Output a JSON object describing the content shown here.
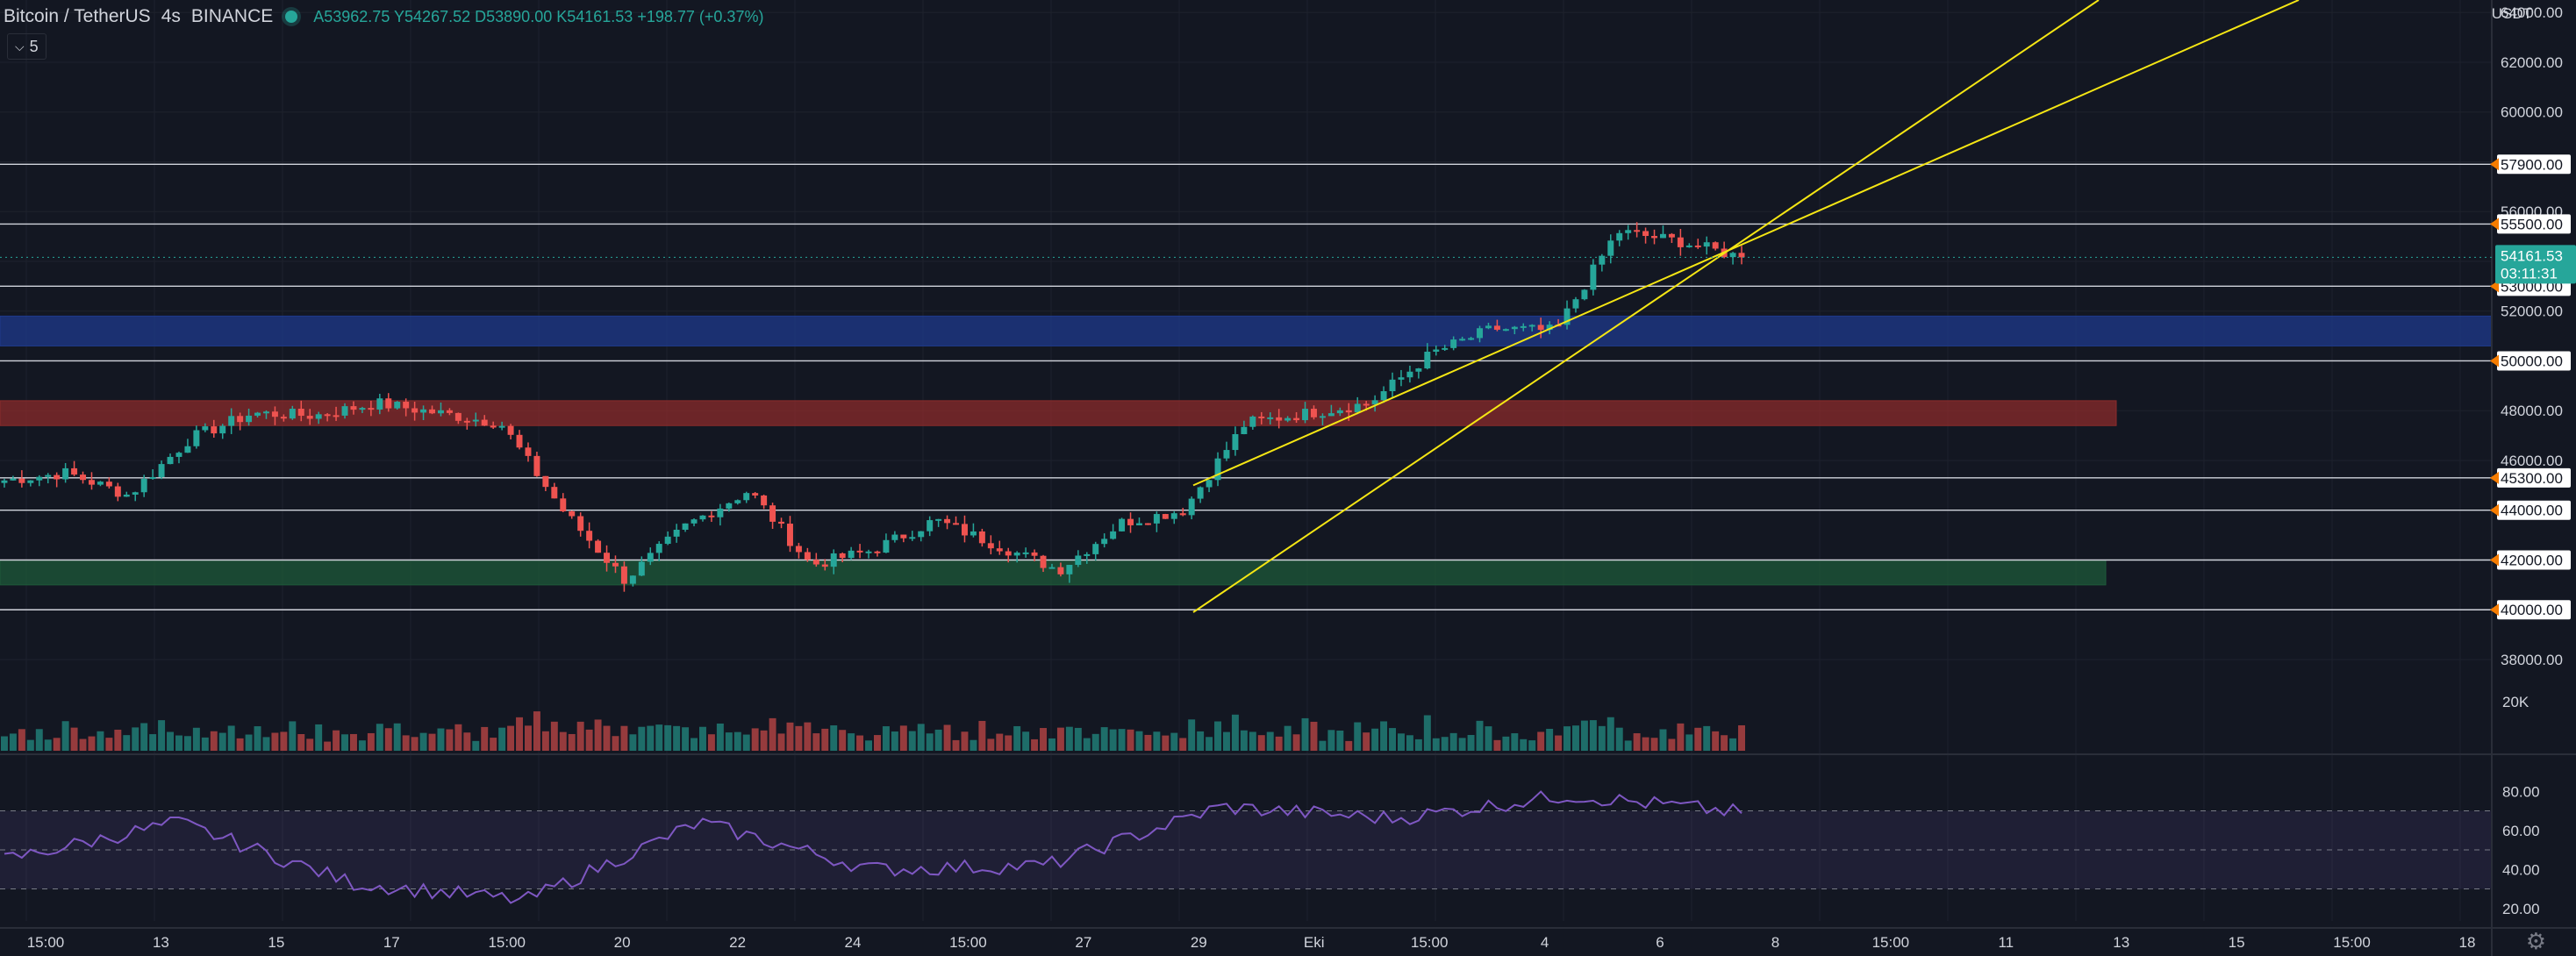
{
  "header": {
    "symbol": "Bitcoin / TetherUS",
    "interval": "4s",
    "exchange": "BINANCE",
    "open": "A53962.75",
    "high": "Y54267.52",
    "low": "D53890.00",
    "close": "K54161.53",
    "change": "+198.77 (+0.37%)",
    "indicator_toggle": "5"
  },
  "price_axis": {
    "unit": "USDT",
    "ticks": [
      "64000.00",
      "62000.00",
      "60000.00",
      "56000.00",
      "52000.00",
      "48000.00",
      "46000.00",
      "44000.00",
      "42000.00",
      "40000.00",
      "38000.00"
    ],
    "horizontal_line_labels": [
      "57900.00",
      "55500.00",
      "53000.00",
      "50000.00",
      "45300.00",
      "44000.00",
      "42000.00",
      "40000.00"
    ],
    "last_price": "54161.53",
    "countdown": "03:11:31"
  },
  "volume_axis": {
    "label": "20K"
  },
  "rsi_axis": {
    "ticks": [
      "80.00",
      "60.00",
      "40.00",
      "20.00"
    ]
  },
  "time_axis": {
    "labels": [
      "15:00",
      "13",
      "15",
      "17",
      "15:00",
      "20",
      "22",
      "24",
      "15:00",
      "27",
      "29",
      "Eki",
      "15:00",
      "4",
      "6",
      "8",
      "15:00",
      "11",
      "13",
      "15",
      "15:00",
      "18"
    ]
  },
  "colors": {
    "background": "#131722",
    "up": "#26a69a",
    "down": "#ef5350",
    "channel": "#f5e614",
    "level_line": "#d1d4dc",
    "blue_zone": "#1f3a8c",
    "red_zone": "#8b2b2b",
    "green_zone": "#1e5a3a",
    "rsi_line": "#7e57c2",
    "marker": "#f57c00"
  },
  "chart_data": {
    "type": "candlestick",
    "symbol": "BTC/USDT",
    "interval": "4s",
    "horizontal_levels": [
      57900,
      55500,
      53000,
      50000,
      45300,
      44000,
      42000,
      40000
    ],
    "zones": [
      {
        "color": "blue",
        "from": 50600,
        "to": 51800
      },
      {
        "color": "red",
        "from": 47400,
        "to": 48400
      },
      {
        "color": "green",
        "from": 41000,
        "to": 42000
      }
    ],
    "channel_lines": [
      {
        "from": [
          "29",
          39900
        ],
        "to": [
          "Eki",
          48100
        ]
      },
      {
        "from": [
          "29",
          45000
        ],
        "to": [
          "6",
          55500
        ]
      }
    ],
    "price_series": [
      {
        "x": "15:00",
        "close": 45200
      },
      {
        "x": "13",
        "close": 45500
      },
      {
        "x": "13.5",
        "close": 44600
      },
      {
        "x": "15",
        "close": 46900
      },
      {
        "x": "15.5",
        "close": 47900
      },
      {
        "x": "17",
        "close": 47800
      },
      {
        "x": "15:00",
        "close": 48300
      },
      {
        "x": "17.9",
        "close": 47900
      },
      {
        "x": "20",
        "close": 47500
      },
      {
        "x": "20.5",
        "close": 44000
      },
      {
        "x": "22",
        "close": 41200
      },
      {
        "x": "22.5",
        "close": 43400
      },
      {
        "x": "24",
        "close": 44800
      },
      {
        "x": "24.3",
        "close": 41800
      },
      {
        "x": "15:00",
        "close": 42400
      },
      {
        "x": "27",
        "close": 43600
      },
      {
        "x": "28",
        "close": 42600
      },
      {
        "x": "29",
        "close": 41600
      },
      {
        "x": "29.8",
        "close": 43500
      },
      {
        "x": "30.5",
        "close": 44000
      },
      {
        "x": "Eki",
        "close": 47500
      },
      {
        "x": "15:00",
        "close": 47900
      },
      {
        "x": "4",
        "close": 48300
      },
      {
        "x": "4.5",
        "close": 50300
      },
      {
        "x": "5.5",
        "close": 51300
      },
      {
        "x": "6",
        "close": 51200
      },
      {
        "x": "6.2",
        "close": 55200
      },
      {
        "x": "7",
        "close": 54800
      },
      {
        "x": "7.5",
        "close": 54161.53
      }
    ],
    "rsi_ylim": [
      20,
      80
    ],
    "rsi_series": [
      {
        "x": "15:00",
        "value": 45
      },
      {
        "x": "15",
        "value": 64
      },
      {
        "x": "20",
        "value": 33
      },
      {
        "x": "22",
        "value": 24
      },
      {
        "x": "24",
        "value": 64
      },
      {
        "x": "24.3",
        "value": 40
      },
      {
        "x": "29",
        "value": 42
      },
      {
        "x": "Eki",
        "value": 72
      },
      {
        "x": "4",
        "value": 66
      },
      {
        "x": "6",
        "value": 78
      },
      {
        "x": "7.5",
        "value": 69
      }
    ],
    "ylim": [
      38000,
      64500
    ]
  }
}
